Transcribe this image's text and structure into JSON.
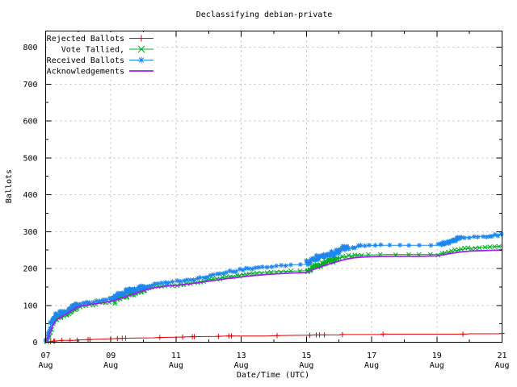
{
  "title": "Declassifying debian-private",
  "chart_data": {
    "type": "line",
    "title": "Declassifying debian-private",
    "xlabel": "Date/Time (UTC)",
    "ylabel": "Ballots",
    "ylim": [
      0,
      844
    ],
    "xlim": [
      7,
      21
    ],
    "grid": true,
    "legend_position": "top-left",
    "grid_color": "#bdbdbd",
    "axis_color": "#000000",
    "background_color": "#ffffff",
    "y_ticks": [
      0,
      100,
      200,
      300,
      400,
      500,
      600,
      700,
      800
    ],
    "y_minor_step": 50,
    "x_ticks": [
      {
        "day": 7,
        "date": "07",
        "month": "Aug"
      },
      {
        "day": 9,
        "date": "09",
        "month": "Aug"
      },
      {
        "day": 11,
        "date": "11",
        "month": "Aug"
      },
      {
        "day": 13,
        "date": "13",
        "month": "Aug"
      },
      {
        "day": 15,
        "date": "15",
        "month": "Aug"
      },
      {
        "day": 17,
        "date": "17",
        "month": "Aug"
      },
      {
        "day": 19,
        "date": "19",
        "month": "Aug"
      },
      {
        "day": 21,
        "date": "21",
        "month": "Aug"
      }
    ],
    "x_minor_days": [
      8,
      10,
      12,
      14,
      16,
      18,
      20
    ],
    "series": [
      {
        "name": "Rejected Ballots",
        "color": "#e60000",
        "marker": "plus",
        "line_width": 1,
        "render": "points",
        "points": [
          [
            7.0,
            0
          ],
          [
            7.1,
            1
          ],
          [
            7.15,
            2
          ],
          [
            7.22,
            3
          ],
          [
            7.28,
            3
          ],
          [
            7.35,
            4
          ],
          [
            7.5,
            5
          ],
          [
            7.9,
            5
          ],
          [
            7.97,
            6
          ],
          [
            8.25,
            7
          ],
          [
            8.6,
            8
          ],
          [
            8.9,
            9
          ],
          [
            9.2,
            10
          ],
          [
            9.4,
            11
          ],
          [
            10.3,
            12
          ],
          [
            10.5,
            13
          ],
          [
            11.1,
            14
          ],
          [
            11.45,
            15
          ],
          [
            12.2,
            16
          ],
          [
            12.55,
            17
          ],
          [
            13.8,
            17
          ],
          [
            14.1,
            18
          ],
          [
            15.0,
            19
          ],
          [
            15.28,
            20
          ],
          [
            16.0,
            20
          ],
          [
            16.1,
            21
          ],
          [
            17.3,
            21
          ],
          [
            17.4,
            22
          ],
          [
            19.9,
            22
          ],
          [
            20.0,
            23
          ],
          [
            20.9,
            23
          ],
          [
            21.0,
            24
          ]
        ],
        "markers": [
          [
            7.15,
            2
          ],
          [
            7.25,
            3
          ],
          [
            7.28,
            3
          ],
          [
            7.5,
            5
          ],
          [
            7.75,
            5
          ],
          [
            7.97,
            6
          ],
          [
            8.3,
            7
          ],
          [
            8.36,
            7
          ],
          [
            9.2,
            10
          ],
          [
            9.35,
            11
          ],
          [
            9.45,
            11
          ],
          [
            10.5,
            13
          ],
          [
            11.2,
            14
          ],
          [
            11.5,
            15
          ],
          [
            11.56,
            15
          ],
          [
            12.3,
            16
          ],
          [
            12.62,
            17
          ],
          [
            12.7,
            17
          ],
          [
            14.1,
            18
          ],
          [
            15.1,
            19
          ],
          [
            15.3,
            20
          ],
          [
            15.4,
            20
          ],
          [
            15.55,
            20
          ],
          [
            16.1,
            21
          ],
          [
            17.35,
            22
          ],
          [
            19.8,
            22
          ],
          [
            21.0,
            24
          ]
        ]
      },
      {
        "name": "Vote Tallied,",
        "color": "#00b020",
        "marker": "cross",
        "line_width": 1,
        "render": "band",
        "seed": 42,
        "points": [
          [
            7.0,
            0
          ],
          [
            7.04,
            4
          ],
          [
            7.08,
            10
          ],
          [
            7.12,
            19
          ],
          [
            7.16,
            30
          ],
          [
            7.2,
            41
          ],
          [
            7.24,
            50
          ],
          [
            7.28,
            58
          ],
          [
            7.33,
            63
          ],
          [
            7.4,
            67
          ],
          [
            7.48,
            71
          ],
          [
            7.56,
            74
          ],
          [
            7.64,
            78
          ],
          [
            7.72,
            83
          ],
          [
            7.8,
            88
          ],
          [
            7.9,
            93
          ],
          [
            8.0,
            96
          ],
          [
            8.2,
            99
          ],
          [
            8.4,
            102
          ],
          [
            8.6,
            105
          ],
          [
            8.8,
            108
          ],
          [
            9.0,
            111
          ],
          [
            9.15,
            115
          ],
          [
            9.3,
            120
          ],
          [
            9.45,
            126
          ],
          [
            9.6,
            131
          ],
          [
            9.75,
            136
          ],
          [
            9.9,
            140
          ],
          [
            10.05,
            144
          ],
          [
            10.2,
            147
          ],
          [
            10.4,
            150
          ],
          [
            10.6,
            152
          ],
          [
            10.8,
            154
          ],
          [
            11.0,
            155
          ],
          [
            11.3,
            158
          ],
          [
            11.6,
            162
          ],
          [
            11.9,
            167
          ],
          [
            12.2,
            172
          ],
          [
            12.5,
            176
          ],
          [
            12.8,
            180
          ],
          [
            13.1,
            184
          ],
          [
            13.4,
            187
          ],
          [
            13.7,
            189
          ],
          [
            14.0,
            191
          ],
          [
            14.3,
            192
          ],
          [
            14.6,
            193
          ],
          [
            15.0,
            194
          ],
          [
            15.15,
            201
          ],
          [
            15.35,
            208
          ],
          [
            15.55,
            215
          ],
          [
            15.75,
            221
          ],
          [
            15.95,
            227
          ],
          [
            16.15,
            231
          ],
          [
            16.35,
            234
          ],
          [
            16.6,
            236
          ],
          [
            17.0,
            237
          ],
          [
            17.5,
            238
          ],
          [
            18.0,
            238
          ],
          [
            18.6,
            238
          ],
          [
            19.0,
            238
          ],
          [
            19.2,
            241
          ],
          [
            19.4,
            245
          ],
          [
            19.6,
            249
          ],
          [
            19.8,
            252
          ],
          [
            20.1,
            255
          ],
          [
            20.4,
            257
          ],
          [
            20.7,
            259
          ],
          [
            21.0,
            261
          ]
        ]
      },
      {
        "name": "Received Ballots",
        "color": "#1c86ee",
        "marker": "star",
        "line_width": 1,
        "render": "band",
        "seed": 1337,
        "points": [
          [
            7.0,
            0
          ],
          [
            7.03,
            5
          ],
          [
            7.06,
            12
          ],
          [
            7.09,
            22
          ],
          [
            7.12,
            33
          ],
          [
            7.15,
            45
          ],
          [
            7.18,
            54
          ],
          [
            7.22,
            62
          ],
          [
            7.26,
            67
          ],
          [
            7.3,
            71
          ],
          [
            7.36,
            74
          ],
          [
            7.44,
            77
          ],
          [
            7.52,
            80
          ],
          [
            7.6,
            82
          ],
          [
            7.68,
            86
          ],
          [
            7.76,
            91
          ],
          [
            7.84,
            96
          ],
          [
            7.92,
            100
          ],
          [
            8.0,
            102
          ],
          [
            8.2,
            105
          ],
          [
            8.4,
            108
          ],
          [
            8.6,
            111
          ],
          [
            8.8,
            114
          ],
          [
            9.0,
            118
          ],
          [
            9.15,
            123
          ],
          [
            9.3,
            128
          ],
          [
            9.45,
            134
          ],
          [
            9.6,
            139
          ],
          [
            9.75,
            144
          ],
          [
            9.9,
            148
          ],
          [
            10.05,
            152
          ],
          [
            10.2,
            155
          ],
          [
            10.4,
            158
          ],
          [
            10.6,
            161
          ],
          [
            10.8,
            163
          ],
          [
            11.0,
            164
          ],
          [
            11.3,
            167
          ],
          [
            11.6,
            172
          ],
          [
            11.9,
            178
          ],
          [
            12.2,
            184
          ],
          [
            12.5,
            189
          ],
          [
            12.8,
            194
          ],
          [
            13.1,
            198
          ],
          [
            13.4,
            201
          ],
          [
            13.7,
            204
          ],
          [
            14.0,
            206
          ],
          [
            14.3,
            208
          ],
          [
            14.6,
            210
          ],
          [
            15.0,
            211
          ],
          [
            15.1,
            219
          ],
          [
            15.25,
            225
          ],
          [
            15.45,
            231
          ],
          [
            15.65,
            238
          ],
          [
            15.85,
            244
          ],
          [
            16.05,
            250
          ],
          [
            16.25,
            255
          ],
          [
            16.45,
            258
          ],
          [
            16.7,
            261
          ],
          [
            17.0,
            262
          ],
          [
            17.4,
            263
          ],
          [
            18.0,
            263
          ],
          [
            18.6,
            263
          ],
          [
            19.0,
            263
          ],
          [
            19.15,
            266
          ],
          [
            19.3,
            270
          ],
          [
            19.5,
            276
          ],
          [
            19.7,
            281
          ],
          [
            19.9,
            284
          ],
          [
            20.2,
            286
          ],
          [
            20.5,
            288
          ],
          [
            20.75,
            290
          ],
          [
            21.0,
            292
          ]
        ]
      },
      {
        "name": "Acknowledgements",
        "color": "#a020f0",
        "marker": "none",
        "line_width": 1.8,
        "render": "line",
        "points": [
          [
            7.0,
            0
          ],
          [
            7.05,
            8
          ],
          [
            7.1,
            18
          ],
          [
            7.15,
            30
          ],
          [
            7.2,
            42
          ],
          [
            7.26,
            52
          ],
          [
            7.33,
            60
          ],
          [
            7.42,
            66
          ],
          [
            7.52,
            71
          ],
          [
            7.62,
            76
          ],
          [
            7.72,
            81
          ],
          [
            7.82,
            87
          ],
          [
            7.92,
            93
          ],
          [
            8.0,
            97
          ],
          [
            8.25,
            101
          ],
          [
            8.5,
            104
          ],
          [
            8.75,
            107
          ],
          [
            9.0,
            111
          ],
          [
            9.2,
            116
          ],
          [
            9.4,
            122
          ],
          [
            9.6,
            128
          ],
          [
            9.8,
            134
          ],
          [
            10.0,
            140
          ],
          [
            10.2,
            145
          ],
          [
            10.4,
            149
          ],
          [
            10.6,
            151
          ],
          [
            10.8,
            153
          ],
          [
            11.0,
            154
          ],
          [
            11.4,
            158
          ],
          [
            11.8,
            163
          ],
          [
            12.2,
            168
          ],
          [
            12.6,
            173
          ],
          [
            13.0,
            177
          ],
          [
            13.4,
            181
          ],
          [
            13.8,
            184
          ],
          [
            14.2,
            186
          ],
          [
            14.6,
            188
          ],
          [
            15.0,
            189
          ],
          [
            15.2,
            197
          ],
          [
            15.45,
            205
          ],
          [
            15.7,
            212
          ],
          [
            15.95,
            219
          ],
          [
            16.2,
            225
          ],
          [
            16.45,
            229
          ],
          [
            16.7,
            231
          ],
          [
            17.0,
            232
          ],
          [
            17.5,
            233
          ],
          [
            18.0,
            233
          ],
          [
            18.5,
            233
          ],
          [
            19.0,
            234
          ],
          [
            19.25,
            238
          ],
          [
            19.5,
            242
          ],
          [
            19.75,
            245
          ],
          [
            20.0,
            247
          ],
          [
            20.3,
            248
          ],
          [
            20.6,
            249
          ],
          [
            21.0,
            250
          ]
        ]
      }
    ]
  }
}
